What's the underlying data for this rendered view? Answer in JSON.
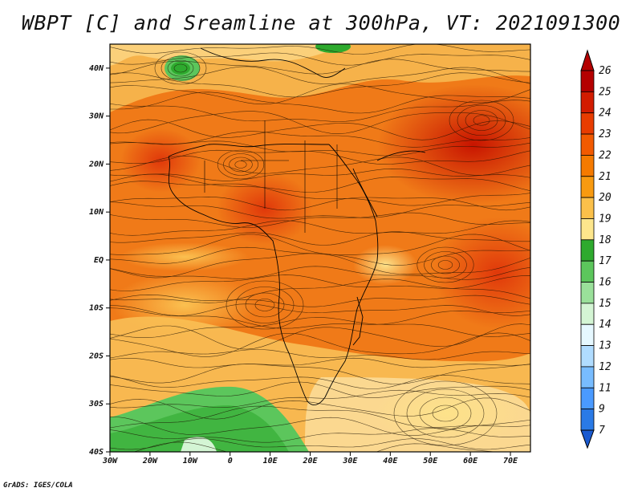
{
  "title": "WBPT [C] and Sreamline at 300hPa, VT: 2021091300",
  "credit": "GrADS: IGES/COLA",
  "map": {
    "lat_labels": [
      "40N",
      "30N",
      "20N",
      "10N",
      "EQ",
      "10S",
      "20S",
      "30S",
      "40S"
    ],
    "lon_labels": [
      "30W",
      "20W",
      "10W",
      "0",
      "10E",
      "20E",
      "30E",
      "40E",
      "50E",
      "60E",
      "70E"
    ],
    "lat_range": [
      -40,
      45
    ],
    "lon_range": [
      -30,
      75
    ]
  },
  "colorbar": {
    "labels": [
      "26",
      "25",
      "24",
      "23",
      "22",
      "21",
      "20",
      "19",
      "18",
      "17",
      "16",
      "15",
      "14",
      "13",
      "12",
      "11",
      "9",
      "7"
    ],
    "colors": [
      "#b40000",
      "#d21c00",
      "#e83c00",
      "#f25a00",
      "#f57a00",
      "#f89a10",
      "#fbc04a",
      "#fde68c",
      "#2eaa2e",
      "#5cc65c",
      "#9ae09a",
      "#d4f5d4",
      "#e6f8ff",
      "#b0dcff",
      "#78bcff",
      "#4a9aff",
      "#2a7ae6",
      "#1a5ad0"
    ]
  }
}
